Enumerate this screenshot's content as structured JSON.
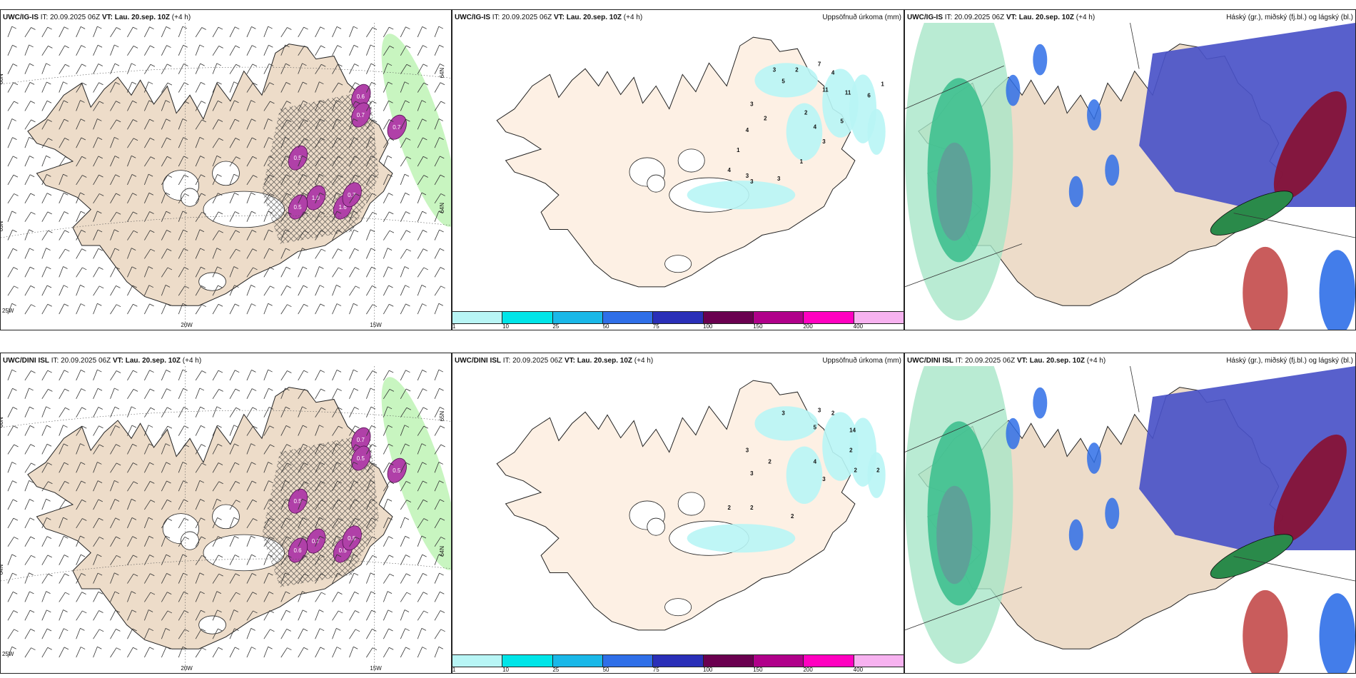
{
  "panels": [
    {
      "id": "top-left",
      "model": "UWC/IG-IS",
      "it_label": "IT:",
      "it": "20.09.2025 06Z",
      "vt_label": "VT:",
      "vt": "Lau. 20.sep. 10Z",
      "lead": "(+4 h)",
      "right_title": "",
      "type": "wind",
      "values": [
        "0.6",
        "0.7",
        "0.5",
        "0.7",
        "1.0",
        "1.6",
        "0.5",
        "0.7"
      ],
      "lon_labels": [
        "20W",
        "15W"
      ],
      "lat_labels": [
        "66N",
        "64N",
        "65N",
        "64N"
      ],
      "corner_label": "25W"
    },
    {
      "id": "top-mid",
      "model": "UWC/IG-IS",
      "it_label": "IT:",
      "it": "20.09.2025 06Z",
      "vt_label": "VT:",
      "vt": "Lau. 20.sep. 10Z",
      "lead": "(+4 h)",
      "right_title": "Uppsöfnuð úrkoma (mm)",
      "type": "precip",
      "values": [
        "3",
        "2",
        "7",
        "4",
        "5",
        "11",
        "11",
        "6",
        "1",
        "3",
        "2",
        "2",
        "4",
        "4",
        "3",
        "5",
        "1",
        "4",
        "3",
        "3",
        "3",
        "1"
      ],
      "lon_labels": [],
      "lat_labels": []
    },
    {
      "id": "top-right",
      "model": "UWC/IG-IS",
      "it_label": "IT:",
      "it": "20.09.2025 06Z",
      "vt_label": "VT:",
      "vt": "Lau. 20.sep. 10Z",
      "lead": "(+4 h)",
      "right_title": "Háský (gr.), miðský (fj.bl.) og lágský (bl.)",
      "type": "cloud",
      "values": []
    },
    {
      "id": "bot-left",
      "model": "UWC/DINI ISL",
      "it_label": "IT:",
      "it": "20.09.2025 06Z",
      "vt_label": "VT:",
      "vt": "Lau. 20.sep. 10Z",
      "lead": "(+4 h)",
      "right_title": "",
      "type": "wind",
      "values": [
        "0.7",
        "0.5",
        "0.5",
        "0.5",
        "0.7",
        "0.5",
        "0.6",
        "0.5"
      ],
      "lon_labels": [
        "20W",
        "15W"
      ],
      "lat_labels": [
        "66N",
        "65N",
        "64N",
        "64N"
      ],
      "corner_label": "25W"
    },
    {
      "id": "bot-mid",
      "model": "UWC/DINI ISL",
      "it_label": "IT:",
      "it": "20.09.2025 06Z",
      "vt_label": "VT:",
      "vt": "Lau. 20.sep. 10Z",
      "lead": "(+4 h)",
      "right_title": "Uppsöfnuð úrkoma (mm)",
      "type": "precip",
      "values": [
        "3",
        "3",
        "2",
        "5",
        "14",
        "3",
        "3",
        "2",
        "2",
        "4",
        "3",
        "2",
        "2",
        "2",
        "2",
        "2"
      ],
      "lon_labels": [],
      "lat_labels": []
    },
    {
      "id": "bot-right",
      "model": "UWC/DINI ISL",
      "it_label": "IT:",
      "it": "20.09.2025 06Z",
      "vt_label": "VT:",
      "vt": "Lau. 20.sep. 10Z",
      "lead": "(+4 h)",
      "right_title": "Háský (gr.), miðský (fj.bl.) og lágský (bl.)",
      "type": "cloud",
      "values": []
    }
  ],
  "colorbar": {
    "colors": [
      "#b8f5f5",
      "#00e5e8",
      "#1ab8e8",
      "#2f6fe8",
      "#2a2fb8",
      "#6a0050",
      "#b0008a",
      "#ff00c0",
      "#f7b2f0"
    ],
    "ticks": [
      "1",
      "10",
      "25",
      "50",
      "75",
      "100",
      "150",
      "200",
      "400"
    ]
  },
  "colors": {
    "land": "#eddcc9",
    "land_precip": "#fdf0e4",
    "ocean": "#ffffff",
    "precip_light": "#b8f5f5",
    "high_cloud": "#2fb38a",
    "mid_cloud": "#4a52c8",
    "low_cloud": "#2f6fe8",
    "ice": "#ffffff",
    "rime": "#c020b0"
  }
}
